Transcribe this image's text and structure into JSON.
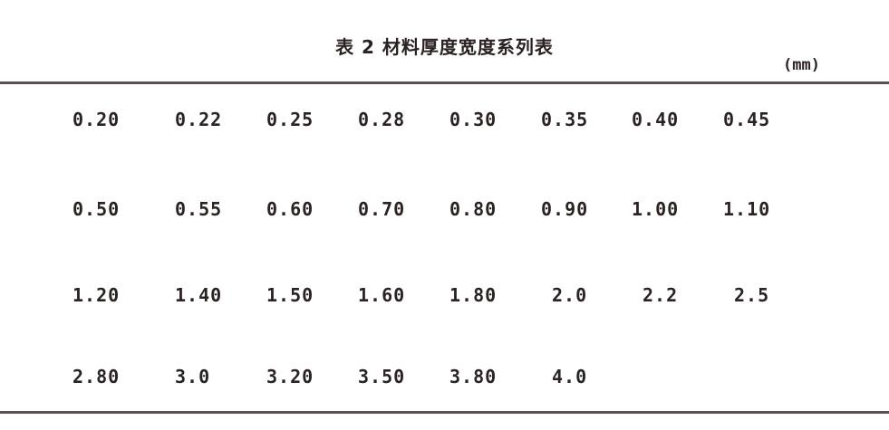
{
  "table": {
    "title": "表 2 材料厚度宽度系列表",
    "unit": "(mm)",
    "rows": [
      [
        "0.20",
        "0.22",
        "0.25",
        "0.28",
        "0.30",
        "0.35",
        "0.40",
        "0.45"
      ],
      [
        "0.50",
        "0.55",
        "0.60",
        "0.70",
        "0.80",
        "0.90",
        "1.00",
        "1.10"
      ],
      [
        "1.20",
        "1.40",
        "1.50",
        "1.60",
        "1.80",
        "2.0",
        "2.2",
        "2.5"
      ],
      [
        "2.80",
        "3.0",
        "3.20",
        "3.50",
        "3.80",
        "4.0"
      ]
    ]
  }
}
